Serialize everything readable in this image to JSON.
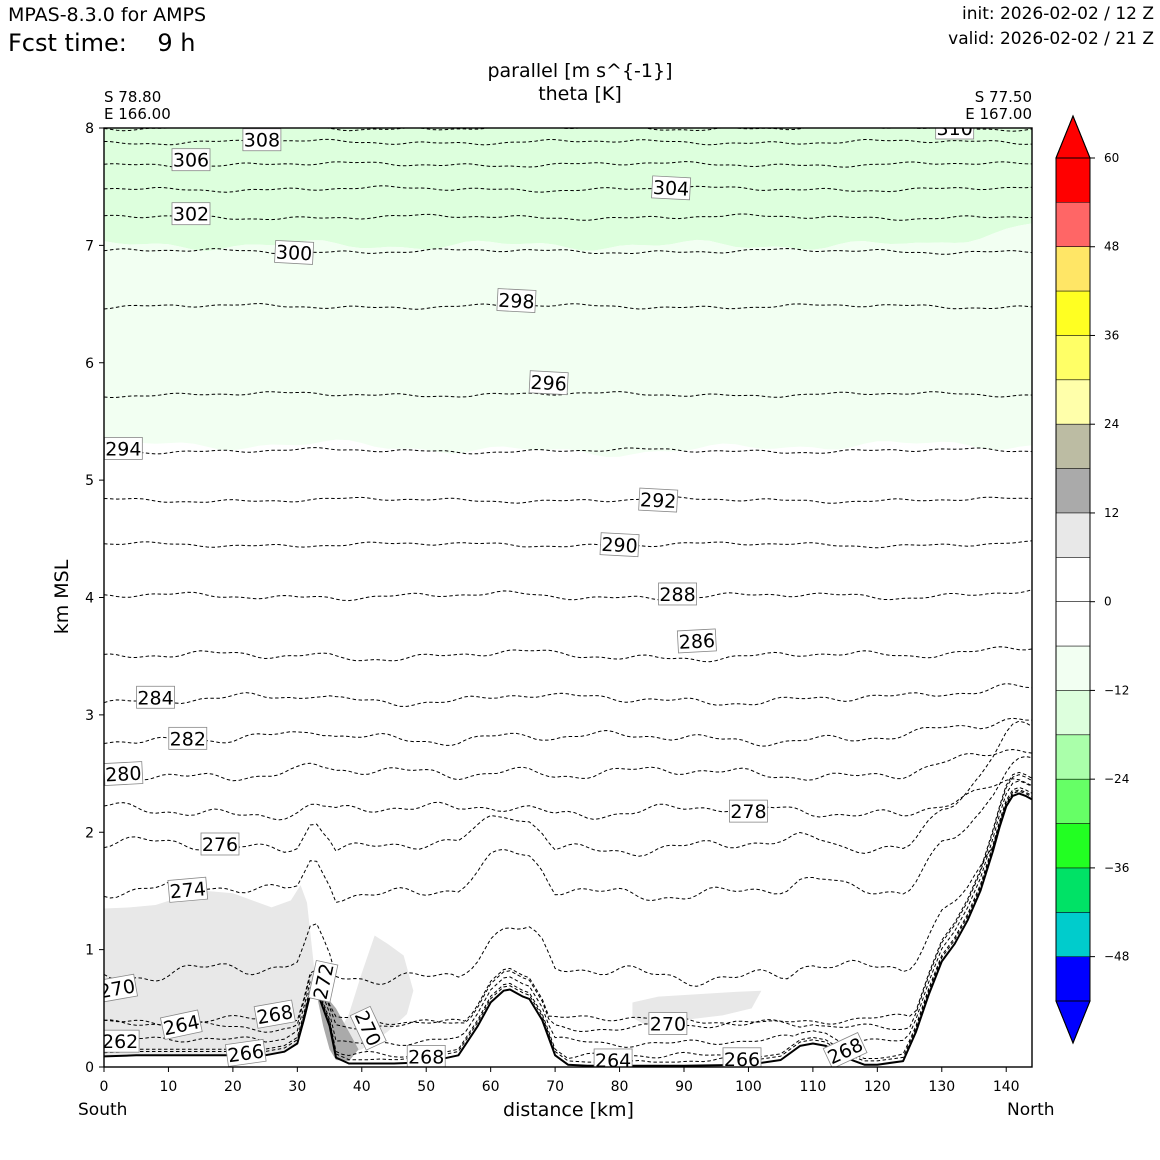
{
  "header": {
    "model": "MPAS-8.3.0 for AMPS",
    "fcst_label": "Fcst time:",
    "fcst_value": "9 h",
    "init": "init: 2026-02-02 / 12 Z",
    "valid": "valid: 2026-02-02 / 21 Z"
  },
  "chart_data": {
    "type": "cross-section",
    "title_line1": "parallel [m s^{-1}]",
    "title_line2": "theta [K]",
    "xlabel": "distance [km]",
    "ylabel": "km MSL",
    "xlim": [
      0,
      144
    ],
    "ylim": [
      0,
      8
    ],
    "x_ticks": [
      0,
      10,
      20,
      30,
      40,
      50,
      60,
      70,
      80,
      90,
      100,
      110,
      120,
      130,
      140
    ],
    "y_ticks": [
      0,
      1,
      2,
      3,
      4,
      5,
      6,
      7,
      8
    ],
    "start_point": {
      "lat": "S 78.80",
      "lon": "E 166.00",
      "side": "South"
    },
    "end_point": {
      "lat": "S 77.50",
      "lon": "E 167.00",
      "side": "North"
    },
    "colorbar": {
      "levels": [
        -54,
        -48,
        -42,
        -36,
        -30,
        -24,
        -18,
        -12,
        -6,
        0,
        6,
        12,
        18,
        24,
        30,
        36,
        42,
        48,
        54,
        60
      ],
      "tick_labels": [
        "60",
        "48",
        "36",
        "24",
        "12",
        "0",
        "−12",
        "−24",
        "−36",
        "−48"
      ],
      "tick_values": [
        60,
        48,
        36,
        24,
        12,
        0,
        -12,
        -24,
        -36,
        -48
      ],
      "colors": [
        "#0000ff",
        "#00cccc",
        "#00e266",
        "#22ff22",
        "#66ff66",
        "#aaffaa",
        "#ddffdd",
        "#f2fff2",
        "#ffffff",
        "#ffffff",
        "#e8e8e8",
        "#aaaaaa",
        "#bcbca3",
        "#ffffaa",
        "#ffff66",
        "#ffff22",
        "#ffe666",
        "#ff6666",
        "#ff0000"
      ],
      "extend": "both"
    },
    "wind_shading": [
      {
        "level": "-12 to -6",
        "color": "#ddffdd",
        "z_bottom": 7.0,
        "z_top": 8.0
      },
      {
        "level": "-6 to 0",
        "color": "#f2fff2",
        "z_bottom": 5.3,
        "z_top": 7.0
      },
      {
        "level": "6 to 12",
        "color": "#e8e8e8",
        "note": "low-level southern area and isolated patches"
      },
      {
        "level": "12 to 18",
        "color": "#aaaaaa",
        "note": "small patch near x = 35 km"
      }
    ],
    "theta_contours": [
      {
        "value": 262,
        "base_z": 0.22
      },
      {
        "value": 264,
        "base_z": 0.35
      },
      {
        "value": 266,
        "base_z": 0.03
      },
      {
        "value": 268,
        "base_z": 0.08
      },
      {
        "value": 270,
        "base_z": 0.4
      },
      {
        "value": 272,
        "base_z": 0.8
      },
      {
        "value": 274,
        "base_z": 1.5
      },
      {
        "value": 276,
        "base_z": 1.88
      },
      {
        "value": 278,
        "base_z": 2.18
      },
      {
        "value": 280,
        "base_z": 2.5
      },
      {
        "value": 282,
        "base_z": 2.8
      },
      {
        "value": 284,
        "base_z": 3.13
      },
      {
        "value": 286,
        "base_z": 3.5
      },
      {
        "value": 288,
        "base_z": 4.01
      },
      {
        "value": 290,
        "base_z": 4.45
      },
      {
        "value": 292,
        "base_z": 4.83
      },
      {
        "value": 294,
        "base_z": 5.25
      },
      {
        "value": 296,
        "base_z": 5.73
      },
      {
        "value": 298,
        "base_z": 6.48
      },
      {
        "value": 300,
        "base_z": 6.95
      },
      {
        "value": 302,
        "base_z": 7.24
      },
      {
        "value": 304,
        "base_z": 7.48
      },
      {
        "value": 306,
        "base_z": 7.69
      },
      {
        "value": 308,
        "base_z": 7.88
      },
      {
        "value": 310,
        "base_z": 8.0
      }
    ],
    "contour_labels": [
      {
        "text": "262",
        "x": 2.5,
        "z": 0.22,
        "rot": 0
      },
      {
        "text": "264",
        "x": 12,
        "z": 0.36,
        "rot": 12
      },
      {
        "text": "266",
        "x": 22,
        "z": 0.12,
        "rot": 8
      },
      {
        "text": "268",
        "x": 26.5,
        "z": 0.45,
        "rot": 10
      },
      {
        "text": "270",
        "x": 2,
        "z": 0.67,
        "rot": 10
      },
      {
        "text": "272",
        "x": 34,
        "z": 0.73,
        "rot": 78
      },
      {
        "text": "270",
        "x": 41,
        "z": 0.33,
        "rot": -65
      },
      {
        "text": "268",
        "x": 50,
        "z": 0.09,
        "rot": 0
      },
      {
        "text": "270",
        "x": 87.5,
        "z": 0.37,
        "rot": 0
      },
      {
        "text": "264",
        "x": 79,
        "z": 0.06,
        "rot": 0
      },
      {
        "text": "266",
        "x": 99,
        "z": 0.07,
        "rot": 0
      },
      {
        "text": "268",
        "x": 115,
        "z": 0.14,
        "rot": 25
      },
      {
        "text": "274",
        "x": 13,
        "z": 1.51,
        "rot": 5
      },
      {
        "text": "276",
        "x": 18,
        "z": 1.9,
        "rot": 0
      },
      {
        "text": "278",
        "x": 100,
        "z": 2.18,
        "rot": 0
      },
      {
        "text": "280",
        "x": 3,
        "z": 2.5,
        "rot": 3
      },
      {
        "text": "282",
        "x": 13,
        "z": 2.8,
        "rot": 0
      },
      {
        "text": "284",
        "x": 8,
        "z": 3.15,
        "rot": 0
      },
      {
        "text": "286",
        "x": 92,
        "z": 3.63,
        "rot": 3
      },
      {
        "text": "288",
        "x": 89,
        "z": 4.03,
        "rot": 0
      },
      {
        "text": "290",
        "x": 80,
        "z": 4.45,
        "rot": -3
      },
      {
        "text": "292",
        "x": 86,
        "z": 4.83,
        "rot": -3
      },
      {
        "text": "294",
        "x": 3,
        "z": 5.27,
        "rot": 0
      },
      {
        "text": "296",
        "x": 69,
        "z": 5.83,
        "rot": -3
      },
      {
        "text": "298",
        "x": 64,
        "z": 6.53,
        "rot": -3
      },
      {
        "text": "300",
        "x": 29.5,
        "z": 6.94,
        "rot": -3
      },
      {
        "text": "302",
        "x": 13.5,
        "z": 7.27,
        "rot": 0
      },
      {
        "text": "304",
        "x": 88,
        "z": 7.49,
        "rot": -3
      },
      {
        "text": "306",
        "x": 13.5,
        "z": 7.73,
        "rot": 0
      },
      {
        "text": "308",
        "x": 24.5,
        "z": 7.9,
        "rot": 0
      },
      {
        "text": "310",
        "x": 132,
        "z": 8.0,
        "rot": 0
      }
    ],
    "terrain": {
      "x": [
        0,
        5,
        10,
        15,
        20,
        25,
        28,
        30,
        31,
        32,
        33,
        35,
        36,
        38,
        40,
        42,
        45,
        50,
        55,
        58,
        60,
        62,
        63,
        65,
        66,
        68,
        70,
        72,
        75,
        80,
        90,
        100,
        105,
        108,
        110,
        112,
        115,
        118,
        120,
        124,
        126,
        128,
        130,
        132,
        134,
        136,
        138,
        139,
        140,
        141,
        142,
        143,
        144
      ],
      "z": [
        0.09,
        0.1,
        0.1,
        0.1,
        0.1,
        0.1,
        0.13,
        0.2,
        0.4,
        0.62,
        0.65,
        0.35,
        0.08,
        0.03,
        0.03,
        0.03,
        0.03,
        0.04,
        0.1,
        0.35,
        0.55,
        0.65,
        0.66,
        0.6,
        0.58,
        0.4,
        0.1,
        0.02,
        0.01,
        0.01,
        0.01,
        0.02,
        0.06,
        0.18,
        0.2,
        0.18,
        0.08,
        0.02,
        0.02,
        0.05,
        0.3,
        0.62,
        0.9,
        1.05,
        1.25,
        1.5,
        1.85,
        2.05,
        2.22,
        2.31,
        2.33,
        2.31,
        2.28
      ]
    }
  }
}
